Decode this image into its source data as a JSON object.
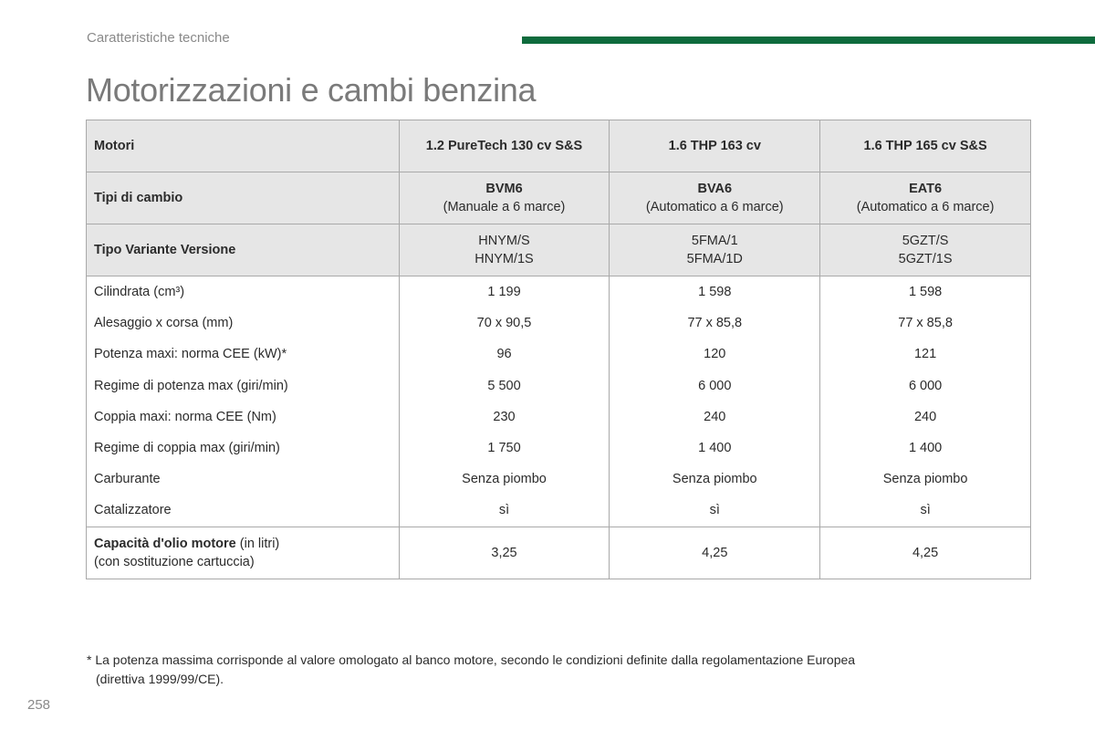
{
  "header": {
    "section": "Caratteristiche tecniche",
    "title": "Motorizzazioni e cambi benzina"
  },
  "table": {
    "engines_label": "Motori",
    "engines": [
      "1.2 PureTech 130 cv S&S",
      "1.6 THP 163 cv",
      "1.6 THP 165 cv S&S"
    ],
    "gearbox_label": "Tipi di cambio",
    "gearboxes": [
      {
        "code": "BVM6",
        "desc": "(Manuale a 6 marce)"
      },
      {
        "code": "BVA6",
        "desc": "(Automatico a 6 marce)"
      },
      {
        "code": "EAT6",
        "desc": "(Automatico a 6 marce)"
      }
    ],
    "variant_label": "Tipo Variante Versione",
    "variants": [
      {
        "line1": "HNYM/S",
        "line2": "HNYM/1S"
      },
      {
        "line1": "5FMA/1",
        "line2": "5FMA/1D"
      },
      {
        "line1": "5GZT/S",
        "line2": "5GZT/1S"
      }
    ],
    "rows": [
      {
        "label": "Cilindrata (cm³)",
        "values": [
          "1 199",
          "1 598",
          "1 598"
        ]
      },
      {
        "label": "Alesaggio x corsa (mm)",
        "values": [
          "70 x 90,5",
          "77 x 85,8",
          "77 x 85,8"
        ]
      },
      {
        "label": "Potenza maxi: norma CEE (kW)*",
        "values": [
          "96",
          "120",
          "121"
        ]
      },
      {
        "label": "Regime di potenza max (giri/min)",
        "values": [
          "5 500",
          "6 000",
          "6 000"
        ]
      },
      {
        "label": "Coppia maxi: norma CEE (Nm)",
        "values": [
          "230",
          "240",
          "240"
        ]
      },
      {
        "label": "Regime di coppia max (giri/min)",
        "values": [
          "1 750",
          "1 400",
          "1 400"
        ]
      },
      {
        "label": "Carburante",
        "values": [
          "Senza piombo",
          "Senza piombo",
          "Senza piombo"
        ]
      },
      {
        "label": "Catalizzatore",
        "values": [
          "sì",
          "sì",
          "sì"
        ]
      }
    ],
    "oil": {
      "label_bold": "Capacità d'olio motore",
      "label_unit": " (in litri)",
      "label_line2": "(con sostituzione cartuccia)",
      "values": [
        "3,25",
        "4,25",
        "4,25"
      ]
    }
  },
  "footnote": {
    "line1": "* La potenza massima corrisponde al valore omologato al banco motore, secondo le condizioni definite dalla regolamentazione Europea",
    "line2": "(direttiva 1999/99/CE)."
  },
  "page_number": "258",
  "colors": {
    "accent_bar": "#0e6b3d",
    "header_fill": "#e6e6e6",
    "title_gray": "#7a7a7a"
  }
}
